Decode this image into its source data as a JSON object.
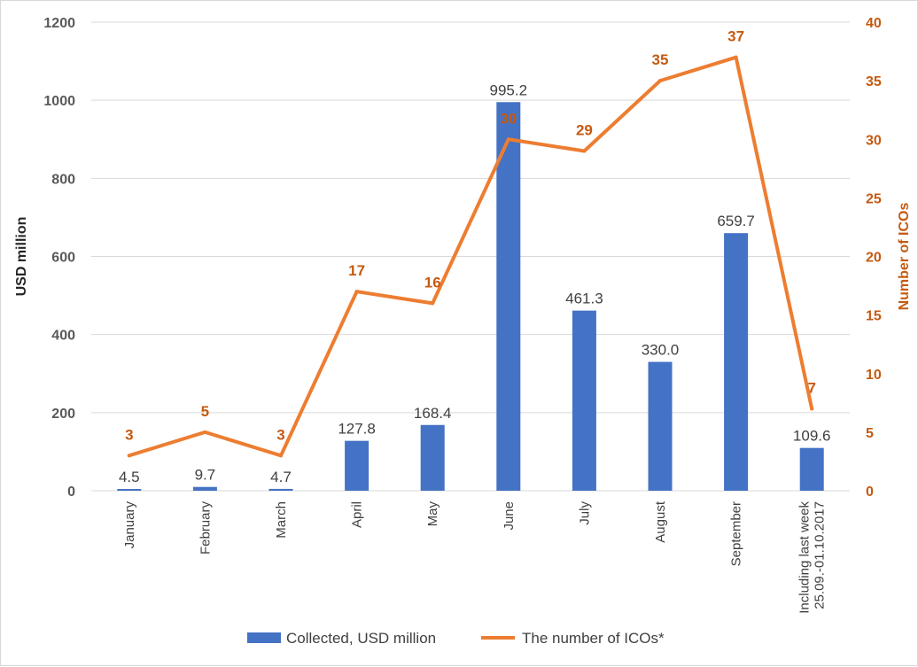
{
  "chart_data": {
    "type": "bar",
    "categories": [
      "January",
      "February",
      "March",
      "April",
      "May",
      "June",
      "July",
      "August",
      "September",
      "Including last week\n25.09.-01.10.2017"
    ],
    "series": [
      {
        "name": "Collected, USD million",
        "type": "bar",
        "axis": "left",
        "color": "#4472c4",
        "values": [
          4.5,
          9.7,
          4.7,
          127.8,
          168.4,
          995.2,
          461.3,
          330.0,
          659.7,
          109.6
        ],
        "labels": [
          "4.5",
          "9.7",
          "4.7",
          "127.8",
          "168.4",
          "995.2",
          "461.3",
          "330.0",
          "659.7",
          "109.6"
        ]
      },
      {
        "name": "The number of ICOs*",
        "type": "line",
        "axis": "right",
        "color": "#ed7d31",
        "values": [
          3,
          5,
          3,
          17,
          16,
          30,
          29,
          35,
          37,
          7
        ],
        "labels": [
          "3",
          "5",
          "3",
          "17",
          "16",
          "30",
          "29",
          "35",
          "37",
          "7"
        ]
      }
    ],
    "ylabel": "USD million",
    "y2label": "Number of ICOs",
    "ylim": [
      0,
      1200
    ],
    "y2lim": [
      0,
      40
    ],
    "yticks": [
      "0",
      "200",
      "400",
      "600",
      "800",
      "1000",
      "1200"
    ],
    "y2ticks": [
      "0",
      "5",
      "10",
      "15",
      "20",
      "25",
      "30",
      "35",
      "40"
    ],
    "grid": true,
    "legend": "bottom"
  }
}
